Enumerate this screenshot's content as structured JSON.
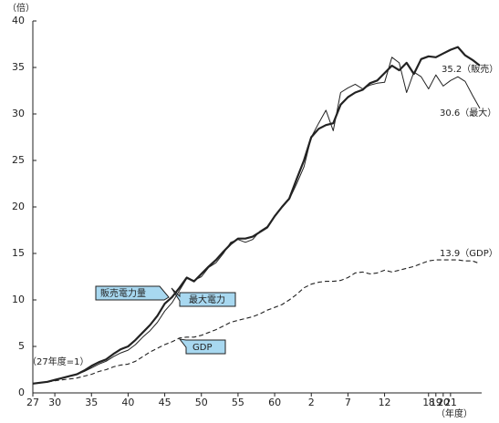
{
  "chart_data": {
    "type": "line",
    "ylabel": "（倍）",
    "xlabel": "（年度）",
    "annotations": [
      "（27年度=1）",
      "35.2（販売）",
      "30.6（最大）",
      "13.9（GDP）"
    ],
    "annotation_color": "#2a9ad6",
    "x": [
      1952,
      1953,
      1954,
      1955,
      1956,
      1957,
      1958,
      1959,
      1960,
      1961,
      1962,
      1963,
      1964,
      1965,
      1966,
      1967,
      1968,
      1969,
      1970,
      1971,
      1972,
      1973,
      1974,
      1975,
      1976,
      1977,
      1978,
      1979,
      1980,
      1981,
      1982,
      1983,
      1984,
      1985,
      1986,
      1987,
      1988,
      1989,
      1990,
      1991,
      1992,
      1993,
      1994,
      1995,
      1996,
      1997,
      1998,
      1999,
      2000,
      2001,
      2002,
      2003,
      2004,
      2005,
      2006,
      2007,
      2008,
      2009,
      2010,
      2011,
      2012,
      2013
    ],
    "xlim": [
      1952,
      2013
    ],
    "xticks": [
      {
        "value": 1952,
        "label": "27"
      },
      {
        "value": 1955,
        "label": "30"
      },
      {
        "value": 1960,
        "label": "35"
      },
      {
        "value": 1965,
        "label": "40"
      },
      {
        "value": 1970,
        "label": "45"
      },
      {
        "value": 1975,
        "label": "50"
      },
      {
        "value": 1980,
        "label": "55"
      },
      {
        "value": 1985,
        "label": "60"
      },
      {
        "value": 1990,
        "label": "2"
      },
      {
        "value": 1995,
        "label": "7"
      },
      {
        "value": 2000,
        "label": "12"
      },
      {
        "value": 2006,
        "label": "18"
      },
      {
        "value": 2007,
        "label": "19"
      },
      {
        "value": 2008,
        "label": "20"
      },
      {
        "value": 2009,
        "label": "21"
      }
    ],
    "ylim": [
      0,
      40
    ],
    "yticks": [
      0,
      5,
      10,
      15,
      20,
      25,
      30,
      35,
      40
    ],
    "grid": false,
    "series": [
      {
        "name": "販売電力量",
        "color": "#222222",
        "line_style": "thick",
        "values": [
          1.0,
          1.1,
          1.2,
          1.4,
          1.6,
          1.8,
          2.0,
          2.4,
          2.9,
          3.3,
          3.6,
          4.2,
          4.7,
          5.0,
          5.7,
          6.5,
          7.3,
          8.3,
          9.6,
          10.3,
          11.3,
          12.4,
          12.0,
          12.8,
          13.6,
          14.3,
          15.2,
          16.0,
          16.6,
          16.6,
          16.8,
          17.3,
          17.8,
          19.0,
          20.0,
          20.9,
          23.0,
          25.0,
          27.5,
          28.4,
          28.8,
          29.0,
          31.0,
          31.8,
          32.3,
          32.6,
          33.3,
          33.6,
          34.4,
          35.2,
          34.7,
          35.5,
          34.3,
          35.9,
          36.2,
          36.1,
          36.5,
          36.9,
          37.2,
          36.3,
          35.8,
          35.2
        ]
      },
      {
        "name": "最大電力",
        "color": "#222222",
        "line_style": "thin",
        "values": [
          1.0,
          1.1,
          1.2,
          1.4,
          1.6,
          1.8,
          2.0,
          2.3,
          2.7,
          3.1,
          3.4,
          3.9,
          4.3,
          4.6,
          5.2,
          6.0,
          6.7,
          7.6,
          8.8,
          9.7,
          11.0,
          12.3,
          12.1,
          12.5,
          13.5,
          14.0,
          15.0,
          16.2,
          16.5,
          16.2,
          16.5,
          17.4,
          17.9,
          19.0,
          20.0,
          20.8,
          22.5,
          24.3,
          27.5,
          29.0,
          30.4,
          28.2,
          32.3,
          32.8,
          33.2,
          32.7,
          33.1,
          33.3,
          33.4,
          36.1,
          35.5,
          32.3,
          34.5,
          34.0,
          32.7,
          34.2,
          33.0,
          33.6,
          34.0,
          33.5,
          32.0,
          30.6
        ]
      },
      {
        "name": "GDP",
        "color": "#222222",
        "line_style": "dashed",
        "values": [
          1.0,
          1.1,
          1.2,
          1.3,
          1.4,
          1.5,
          1.6,
          1.8,
          2.0,
          2.3,
          2.5,
          2.8,
          3.0,
          3.1,
          3.4,
          3.9,
          4.4,
          4.8,
          5.2,
          5.5,
          5.9,
          6.0,
          6.0,
          6.2,
          6.5,
          6.8,
          7.2,
          7.6,
          7.8,
          8.0,
          8.2,
          8.5,
          8.9,
          9.2,
          9.5,
          10.0,
          10.6,
          11.3,
          11.7,
          11.9,
          12.0,
          12.0,
          12.1,
          12.4,
          12.9,
          13.0,
          12.8,
          12.9,
          13.2,
          13.0,
          13.2,
          13.4,
          13.6,
          13.9,
          14.2,
          14.3,
          14.3,
          14.3,
          14.3,
          14.2,
          14.2,
          13.9
        ]
      }
    ]
  }
}
